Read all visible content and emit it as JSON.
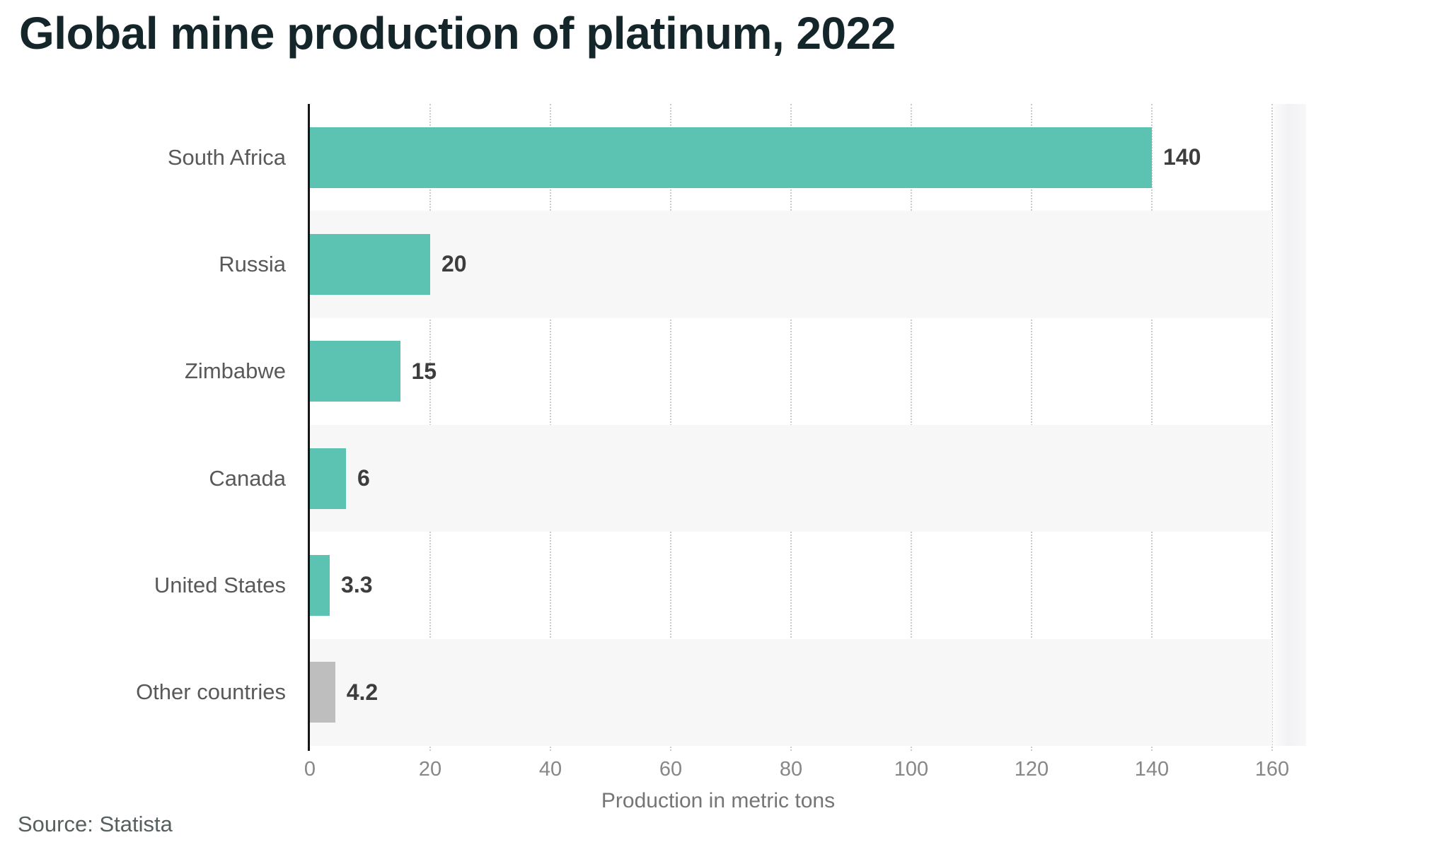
{
  "chart_data": {
    "type": "bar",
    "orientation": "horizontal",
    "title": "Global mine production of platinum, 2022",
    "categories": [
      "South Africa",
      "Russia",
      "Zimbabwe",
      "Canada",
      "United States",
      "Other countries"
    ],
    "values": [
      140,
      20,
      15,
      6,
      3.3,
      4.2
    ],
    "value_labels": [
      "140",
      "20",
      "15",
      "6",
      "3.3",
      "4.2"
    ],
    "bar_colors": [
      "#5cc3b3",
      "#5cc3b3",
      "#5cc3b3",
      "#5cc3b3",
      "#5cc3b3",
      "#bebebe"
    ],
    "xlabel": "Production in metric tons",
    "xlim": [
      0,
      160
    ],
    "xticks": [
      0,
      20,
      40,
      60,
      80,
      100,
      120,
      140,
      160
    ],
    "grid": "dotted-vertical",
    "legend": "none",
    "row_stripe_color": "#f7f7f8",
    "accent_color": "#5cc3b3",
    "other_bar_color": "#bebebe",
    "title_color": "#15262b"
  },
  "source": "Source: Statista"
}
